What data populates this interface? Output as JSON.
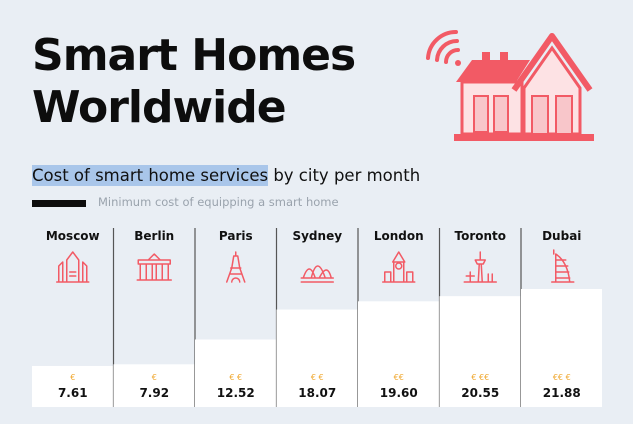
{
  "title_line1": "Smart Homes",
  "title_line2": "Worldwide",
  "subtitle_highlight": "Cost of smart home services",
  "subtitle_rest": " by city per month",
  "legend_label": "Minimum cost of equipping a smart home",
  "colors": {
    "accent": "#f25a65",
    "bar": "#ffffff",
    "euro": "#f0a830",
    "background": "#e9eef4",
    "highlight": "#a9c6ea"
  },
  "chart_data": {
    "type": "bar",
    "categories": [
      "Moscow",
      "Berlin",
      "Paris",
      "Sydney",
      "London",
      "Toronto",
      "Dubai"
    ],
    "values": [
      7.61,
      7.92,
      12.52,
      18.07,
      19.6,
      20.55,
      21.88
    ],
    "value_labels": [
      "7.61",
      "7.92",
      "12.52",
      "18.07",
      "19.60",
      "20.55",
      "21.88"
    ],
    "cost_tiers": [
      "€",
      "€",
      "€ €",
      "€ €",
      "€€",
      "€ €€",
      "€€ €"
    ],
    "icons": [
      "kremlin-icon",
      "brandenburg-gate-icon",
      "eiffel-tower-icon",
      "opera-house-icon",
      "big-ben-icon",
      "cn-tower-icon",
      "burj-al-arab-icon"
    ],
    "title": "Cost of smart home services by city per month",
    "xlabel": "",
    "ylabel": "",
    "grid": false
  }
}
